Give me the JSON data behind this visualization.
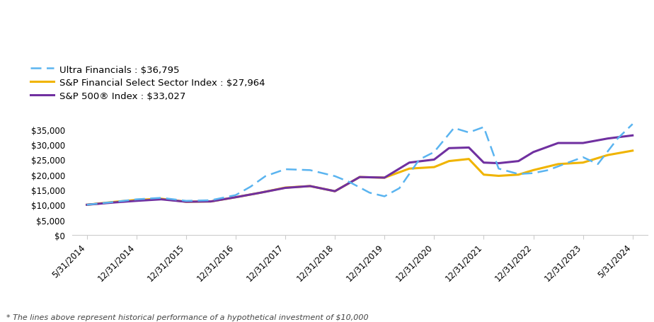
{
  "legend": [
    {
      "label": "Ultra Financials : $36,795",
      "color": "#5ab4f0",
      "linestyle": "--",
      "linewidth": 1.8,
      "dashes": [
        6,
        3
      ]
    },
    {
      "label": "S&P Financial Select Sector Index : $27,964",
      "color": "#f0b400",
      "linestyle": "-",
      "linewidth": 2.2
    },
    {
      "label": "S&P 500® Index : $33,027",
      "color": "#7030a0",
      "linestyle": "-",
      "linewidth": 2.2
    }
  ],
  "x_labels": [
    "5/31/2014",
    "12/31/2014",
    "12/31/2015",
    "12/31/2016",
    "12/31/2017",
    "12/31/2018",
    "12/31/2019",
    "12/31/2020",
    "12/31/2021",
    "12/31/2022",
    "12/31/2023",
    "5/31/2024"
  ],
  "uf_x": [
    0,
    0.58,
    1,
    1.5,
    2,
    2.5,
    3,
    3.3,
    3.6,
    4,
    4.5,
    5,
    5.3,
    5.7,
    6,
    6.3,
    6.7,
    7,
    7.4,
    7.7,
    8,
    8.3,
    8.7,
    9,
    9.3,
    9.7,
    10,
    10.3,
    10.7,
    11
  ],
  "uf_y": [
    10000,
    11000,
    11800,
    12300,
    11300,
    11500,
    13200,
    16000,
    19500,
    21800,
    21500,
    19500,
    17500,
    14000,
    12800,
    15500,
    25000,
    27500,
    35500,
    34000,
    35800,
    22000,
    20200,
    20500,
    21500,
    24000,
    25800,
    23500,
    32000,
    36795
  ],
  "spf_x": [
    0,
    0.58,
    1,
    1.5,
    2,
    2.5,
    3,
    3.5,
    4,
    4.5,
    5,
    5.5,
    6,
    6.5,
    7,
    7.3,
    7.7,
    8,
    8.3,
    8.7,
    9,
    9.5,
    10,
    10.5,
    11
  ],
  "spf_y": [
    10000,
    11000,
    11600,
    12000,
    11000,
    11100,
    12500,
    14000,
    15700,
    16200,
    14500,
    19200,
    19000,
    22000,
    22500,
    24500,
    25200,
    20000,
    19600,
    20000,
    21500,
    23500,
    24000,
    26500,
    27964
  ],
  "sp5_x": [
    0,
    0.58,
    1,
    1.5,
    2,
    2.5,
    3,
    3.5,
    4,
    4.5,
    5,
    5.5,
    6,
    6.5,
    7,
    7.3,
    7.7,
    8,
    8.3,
    8.7,
    9,
    9.5,
    10,
    10.5,
    11
  ],
  "sp5_y": [
    10000,
    10800,
    11300,
    11800,
    11000,
    11100,
    12500,
    14000,
    15600,
    16200,
    14500,
    19200,
    19000,
    24000,
    25000,
    28800,
    29000,
    24000,
    23800,
    24500,
    27500,
    30500,
    30500,
    32000,
    33027
  ],
  "footnote": "* The lines above represent historical performance of a hypothetical investment of $10,000",
  "ylim": [
    0,
    37500
  ],
  "yticks": [
    0,
    5000,
    10000,
    15000,
    20000,
    25000,
    30000,
    35000
  ],
  "background_color": "#ffffff"
}
